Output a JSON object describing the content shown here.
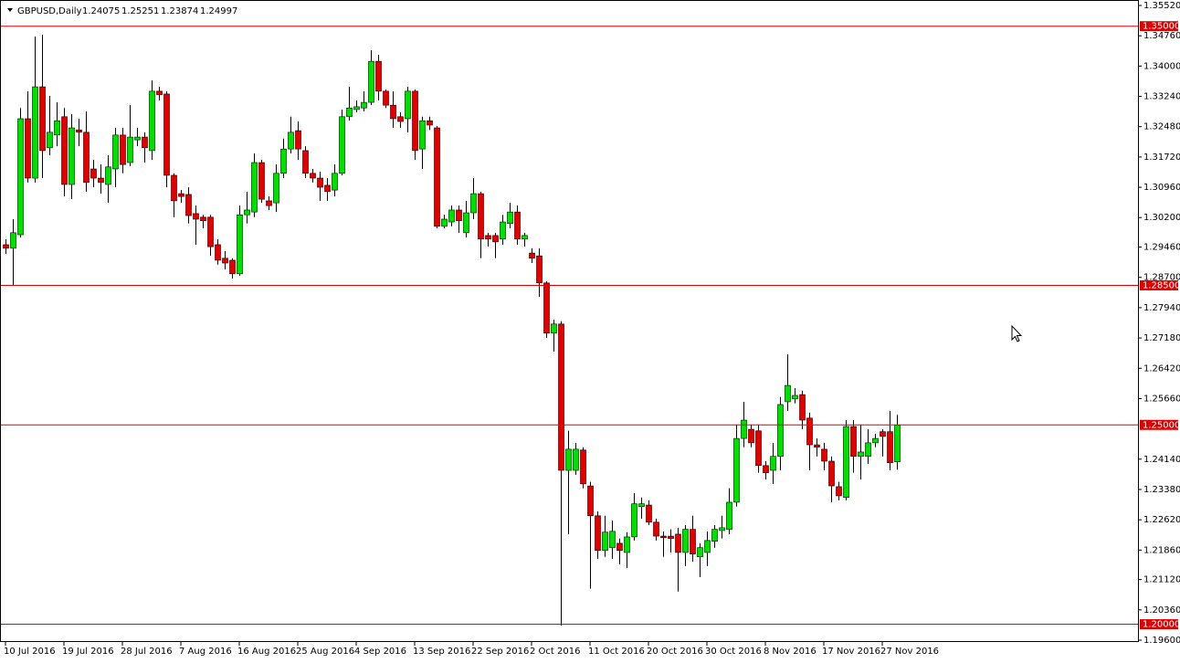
{
  "chart_data": {
    "type": "candlestick",
    "title": "GBPUSD,Daily",
    "categories": [
      "10 Jul 2016",
      null,
      null,
      null,
      null,
      null,
      null,
      null,
      "19 Jul 2016",
      null,
      null,
      null,
      null,
      null,
      null,
      null,
      "28 Jul 2016",
      null,
      null,
      null,
      null,
      null,
      null,
      null,
      "7 Aug 2016",
      null,
      null,
      null,
      null,
      null,
      null,
      null,
      "16 Aug 2016",
      null,
      null,
      null,
      null,
      null,
      null,
      null,
      "25 Aug 2016",
      null,
      null,
      null,
      null,
      null,
      null,
      null,
      "4 Sep 2016",
      null,
      null,
      null,
      null,
      null,
      null,
      null,
      "13 Sep 2016",
      null,
      null,
      null,
      null,
      null,
      null,
      null,
      "22 Sep 2016",
      null,
      null,
      null,
      null,
      null,
      null,
      null,
      "2 Oct 2016",
      null,
      null,
      null,
      null,
      null,
      null,
      null,
      "11 Oct 2016",
      null,
      null,
      null,
      null,
      null,
      null,
      null,
      "20 Oct 2016",
      null,
      null,
      null,
      null,
      null,
      null,
      null,
      "30 Oct 2016",
      null,
      null,
      null,
      null,
      null,
      null,
      null,
      "8 Nov 2016",
      null,
      null,
      null,
      null,
      null,
      null,
      null,
      "17 Nov 2016",
      null,
      null,
      null,
      null,
      null,
      null,
      null,
      "27 Nov 2016",
      null,
      null
    ],
    "open": [
      1.2952,
      1.2943,
      1.2977,
      1.3268,
      1.3119,
      1.3348,
      1.3195,
      1.3227,
      1.3273,
      1.3103,
      1.324,
      1.3234,
      1.3142,
      1.3119,
      1.3103,
      1.3142,
      1.3227,
      1.3158,
      1.3215,
      1.3222,
      1.3188,
      1.3337,
      1.333,
      1.3126,
      1.308,
      1.3078,
      1.303,
      1.3021,
      1.3021,
      1.2952,
      1.2918,
      1.2913,
      1.2879,
      1.3027,
      1.3034,
      1.3158,
      1.3062,
      1.3057,
      1.3131,
      1.3192,
      1.3238,
      1.3188,
      1.3131,
      1.3119,
      1.3101,
      1.3089,
      1.3131,
      1.3273,
      1.3291,
      1.3295,
      1.3309,
      1.3412,
      1.3337,
      1.3302,
      1.3273,
      1.3268,
      1.3337,
      1.3192,
      1.3263,
      1.3245,
      1.2998,
      1.3009,
      1.3039,
      1.2982,
      1.3032,
      1.308,
      1.2975,
      1.2975,
      1.2966,
      1.3005,
      1.3034,
      1.2966,
      1.2931,
      1.2924,
      1.2856,
      1.273,
      1.2753,
      1.2386,
      1.2386,
      1.2437,
      1.2347,
      1.2272,
      1.2185,
      1.2192,
      1.2203,
      1.218,
      1.2219,
      1.2295,
      1.2299,
      1.2256,
      1.2221,
      1.2221,
      1.2226,
      1.218,
      1.2238,
      1.2169,
      1.218,
      1.2208,
      1.2235,
      1.2238,
      1.2306,
      1.2466,
      1.2489,
      1.2485,
      1.2398,
      1.2386,
      1.2421,
      1.2558,
      1.2565,
      1.2576,
      1.2517,
      1.245,
      1.2439,
      1.2409,
      1.2345,
      1.2318,
      1.2496,
      1.2421,
      1.2421,
      1.2455,
      1.2483,
      1.2483,
      1.24075
    ],
    "high": [
      1.2966,
      1.3016,
      1.3295,
      1.3337,
      1.3474,
      1.3479,
      1.3325,
      1.3309,
      1.3295,
      1.3279,
      1.3268,
      1.3286,
      1.3165,
      1.3153,
      1.3176,
      1.3245,
      1.3245,
      1.3302,
      1.3245,
      1.3234,
      1.3364,
      1.3348,
      1.3337,
      1.3131,
      1.3089,
      1.3096,
      1.305,
      1.3027,
      1.3027,
      1.2966,
      1.2936,
      1.2918,
      1.305,
      1.3085,
      1.3181,
      1.3165,
      1.3073,
      1.3153,
      1.3218,
      1.3273,
      1.3261,
      1.3199,
      1.3142,
      1.3135,
      1.3119,
      1.3153,
      1.3291,
      1.3348,
      1.3314,
      1.3337,
      1.344,
      1.3428,
      1.3341,
      1.3337,
      1.3284,
      1.3348,
      1.3341,
      1.3273,
      1.3273,
      1.325,
      1.3027,
      1.305,
      1.305,
      1.3062,
      1.3119,
      1.3085,
      1.2982,
      1.2982,
      1.3027,
      1.3057,
      1.305,
      1.2982,
      1.2943,
      1.2943,
      1.286,
      1.2764,
      1.276,
      1.2485,
      1.2455,
      1.2444,
      1.2357,
      1.2283,
      1.2272,
      1.226,
      1.2215,
      1.2231,
      1.2329,
      1.2318,
      1.2311,
      1.2265,
      1.2233,
      1.2238,
      1.2242,
      1.2249,
      1.2272,
      1.2203,
      1.2233,
      1.2249,
      1.2272,
      1.2341,
      1.2501,
      1.2558,
      1.2501,
      1.2501,
      1.2409,
      1.2455,
      1.257,
      1.2677,
      1.2592,
      1.2586,
      1.2531,
      1.2466,
      1.2455,
      1.2421,
      1.2357,
      1.2512,
      1.2512,
      1.2501,
      1.2489,
      1.2478,
      1.2489,
      1.2535,
      1.25251
    ],
    "low": [
      1.2929,
      1.2851,
      1.297,
      1.3108,
      1.3108,
      1.3119,
      1.3176,
      1.3199,
      1.3073,
      1.3066,
      1.3199,
      1.3085,
      1.3096,
      1.308,
      1.3057,
      1.3096,
      1.3131,
      1.3149,
      1.3199,
      1.3158,
      1.3165,
      1.3314,
      1.3096,
      1.3021,
      1.3057,
      1.3005,
      1.2952,
      1.2993,
      1.2924,
      1.2902,
      1.289,
      1.2867,
      1.2874,
      1.3005,
      1.3021,
      1.3057,
      1.3039,
      1.3034,
      1.3119,
      1.3181,
      1.3165,
      1.3119,
      1.3108,
      1.3062,
      1.3062,
      1.3073,
      1.3126,
      1.3263,
      1.3284,
      1.3286,
      1.3302,
      1.3314,
      1.3295,
      1.3245,
      1.3245,
      1.3234,
      1.3165,
      1.3142,
      1.324,
      1.2993,
      1.2993,
      1.2998,
      1.2982,
      1.297,
      1.3016,
      1.2918,
      1.2947,
      1.2918,
      1.2952,
      1.2993,
      1.2952,
      1.2947,
      1.2906,
      1.2821,
      1.2718,
      1.2684,
      1.1997,
      1.2226,
      1.2375,
      1.2341,
      1.2089,
      1.2164,
      1.2169,
      1.2164,
      1.215,
      1.2141,
      1.221,
      1.2265,
      1.2249,
      1.221,
      1.2169,
      1.218,
      1.2082,
      1.2146,
      1.2157,
      1.2118,
      1.2146,
      1.2192,
      1.2215,
      1.2226,
      1.2295,
      1.2444,
      1.2444,
      1.238,
      1.2363,
      1.2352,
      1.2386,
      1.2535,
      1.2554,
      1.2489,
      1.2386,
      1.2421,
      1.2386,
      1.2306,
      1.2311,
      1.2311,
      1.238,
      1.2363,
      1.2402,
      1.2444,
      1.2421,
      1.2386,
      1.23874
    ],
    "close": [
      1.2943,
      1.2982,
      1.3268,
      1.3119,
      1.3348,
      1.3188,
      1.3234,
      1.3263,
      1.3103,
      1.3245,
      1.3234,
      1.3108,
      1.3119,
      1.3108,
      1.3147,
      1.3227,
      1.3153,
      1.3222,
      1.3222,
      1.3195,
      1.3337,
      1.3328,
      1.3126,
      1.3062,
      1.3073,
      1.3025,
      1.3016,
      1.3012,
      1.2947,
      1.2913,
      1.2906,
      1.2879,
      1.3027,
      1.3039,
      1.3158,
      1.3066,
      1.305,
      1.3131,
      1.3192,
      1.3234,
      1.3192,
      1.3131,
      1.3119,
      1.3096,
      1.3085,
      1.3131,
      1.3273,
      1.3295,
      1.3298,
      1.3309,
      1.3412,
      1.3337,
      1.3302,
      1.3268,
      1.3261,
      1.3337,
      1.3188,
      1.3263,
      1.3252,
      1.2998,
      1.3016,
      1.3039,
      1.3012,
      1.3032,
      1.308,
      1.2966,
      1.2966,
      1.2959,
      1.3009,
      1.3034,
      1.2966,
      1.2975,
      1.2918,
      1.2856,
      1.273,
      1.2753,
      1.2386,
      1.2439,
      1.2439,
      1.2352,
      1.2272,
      1.2185,
      1.2231,
      1.2233,
      1.2185,
      1.2219,
      1.2302,
      1.2302,
      1.2256,
      1.2221,
      1.2217,
      1.2215,
      1.218,
      1.2238,
      1.2176,
      1.2192,
      1.221,
      1.2238,
      1.2242,
      1.2306,
      1.2466,
      1.2512,
      1.2455,
      1.2398,
      1.238,
      1.2421,
      1.2551,
      1.2599,
      1.2574,
      1.2512,
      1.245,
      1.2444,
      1.2409,
      1.2347,
      1.2322,
      1.2496,
      1.2421,
      1.2432,
      1.2455,
      1.2466,
      1.2471,
      1.2405,
      1.24997
    ],
    "up_color": "#00e000",
    "down_color": "#e00000",
    "wick_color": "#000000",
    "ylim": [
      1.196,
      1.3552
    ],
    "yticks": [
      {
        "value": 1.3552,
        "label": "1.35520"
      },
      {
        "value": 1.3476,
        "label": "1.34760"
      },
      {
        "value": 1.34,
        "label": "1.34000"
      },
      {
        "value": 1.3324,
        "label": "1.33240"
      },
      {
        "value": 1.3248,
        "label": "1.32480"
      },
      {
        "value": 1.3172,
        "label": "1.31720"
      },
      {
        "value": 1.3096,
        "label": "1.30960"
      },
      {
        "value": 1.302,
        "label": "1.30200"
      },
      {
        "value": 1.2946,
        "label": "1.29460"
      },
      {
        "value": 1.287,
        "label": "1.28700"
      },
      {
        "value": 1.2794,
        "label": "1.27940"
      },
      {
        "value": 1.2718,
        "label": "1.27180"
      },
      {
        "value": 1.2642,
        "label": "1.26420"
      },
      {
        "value": 1.2566,
        "label": "1.25660"
      },
      {
        "value": 1.2414,
        "label": "1.24140"
      },
      {
        "value": 1.2338,
        "label": "1.23380"
      },
      {
        "value": 1.2262,
        "label": "1.22620"
      },
      {
        "value": 1.2186,
        "label": "1.21860"
      },
      {
        "value": 1.2112,
        "label": "1.21120"
      },
      {
        "value": 1.2036,
        "label": "1.20360"
      },
      {
        "value": 1.196,
        "label": "1.19600"
      }
    ],
    "levels": [
      {
        "value": 1.35,
        "label": "1.35000"
      },
      {
        "value": 1.285,
        "label": "1.28500"
      },
      {
        "value": 1.25,
        "label": "1.25000"
      },
      {
        "value": 1.2,
        "label": "1.20000"
      }
    ],
    "level_color": "#e00000"
  }
}
